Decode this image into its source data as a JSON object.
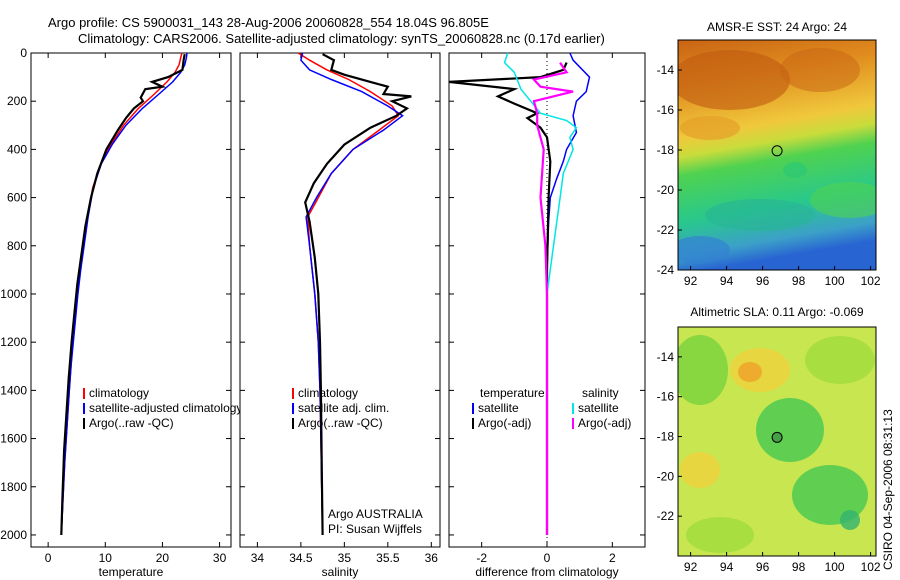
{
  "header": {
    "line1": "Argo profile: CS 5900031_143 28-Aug-2006 20060828_554 18.04S 96.805E",
    "line2": "Climatology: CARS2006. Satellite-adjusted climatology: synTS_20060828.nc (0.17d earlier)"
  },
  "colors": {
    "climatology": "#ff0000",
    "satellite": "#0000ff",
    "argo": "#000000",
    "salinity_sat": "#00e5e5",
    "salinity_argo": "#ff00ff"
  },
  "footer": {
    "stamp": "CSIRO 04-Sep-2006 08:31:13"
  },
  "chart_data": [
    {
      "type": "line",
      "id": "temperature",
      "xlabel": "temperature",
      "ylabel": "",
      "xlim": [
        -3,
        32
      ],
      "ylim": [
        2050,
        0
      ],
      "xticks": [
        0,
        10,
        20,
        30
      ],
      "yticks": [
        0,
        200,
        400,
        600,
        800,
        1000,
        1200,
        1400,
        1600,
        1800,
        2000
      ],
      "legend": [
        "climatology",
        "satellite-adjusted climatology",
        "Argo(..raw -QC)"
      ],
      "series": [
        {
          "name": "climatology",
          "color": "#ff0000",
          "x": [
            23.4,
            23.2,
            22.9,
            22.2,
            20.8,
            18.6,
            15.8,
            13.2,
            11.0,
            9.2,
            7.8,
            6.9,
            6.2,
            5.6,
            5.1,
            4.7,
            4.3,
            4.0,
            3.7,
            3.3,
            2.9,
            2.6,
            2.3
          ],
          "y": [
            0,
            20,
            50,
            80,
            120,
            170,
            230,
            300,
            380,
            460,
            560,
            680,
            800,
            900,
            1000,
            1100,
            1200,
            1300,
            1400,
            1550,
            1700,
            1850,
            2000
          ]
        },
        {
          "name": "satellite",
          "color": "#0000ff",
          "x": [
            24.3,
            24.2,
            23.9,
            23.2,
            21.8,
            19.4,
            16.5,
            13.6,
            11.2,
            9.3,
            7.9,
            7.0,
            6.3,
            5.7,
            5.2,
            4.8,
            4.4,
            4.0,
            3.7,
            3.3,
            2.9,
            2.6,
            2.3
          ],
          "y": [
            0,
            20,
            50,
            80,
            120,
            170,
            230,
            300,
            380,
            460,
            560,
            680,
            800,
            900,
            1000,
            1100,
            1200,
            1300,
            1400,
            1550,
            1700,
            1850,
            2000
          ]
        },
        {
          "name": "Argo",
          "color": "#000000",
          "x": [
            23.9,
            23.7,
            23.5,
            21.0,
            18.2,
            20.0,
            17.0,
            16.2,
            16.6,
            15.0,
            13.6,
            12.2,
            10.2,
            8.6,
            7.5,
            6.5,
            5.8,
            5.1,
            4.6,
            4.1,
            3.6,
            3.2,
            2.8,
            2.5,
            2.3
          ],
          "y": [
            5,
            30,
            70,
            100,
            120,
            140,
            150,
            185,
            200,
            230,
            270,
            320,
            400,
            500,
            600,
            720,
            840,
            960,
            1080,
            1200,
            1350,
            1500,
            1650,
            1850,
            2000
          ]
        }
      ]
    },
    {
      "type": "line",
      "id": "salinity",
      "xlabel": "salinity",
      "ylabel": "",
      "xlim": [
        33.8,
        36.1
      ],
      "ylim": [
        2050,
        0
      ],
      "xticks": [
        34,
        34.5,
        35,
        35.5,
        36
      ],
      "xticklabels": [
        "34",
        "34.5",
        "35",
        "35.5",
        "36"
      ],
      "legend": [
        "climatology",
        "satellite adj. clim.",
        "Argo(..raw -QC)"
      ],
      "annotations": [
        "Argo AUSTRALIA",
        "PI: Susan Wijffels"
      ],
      "series": [
        {
          "name": "climatology",
          "color": "#ff0000",
          "x": [
            34.47,
            34.6,
            34.8,
            35.05,
            35.3,
            35.55,
            35.62,
            35.4,
            35.1,
            34.85,
            34.7,
            34.58,
            34.6,
            34.66,
            34.7,
            34.72,
            34.73,
            34.74,
            34.75
          ],
          "y": [
            0,
            30,
            70,
            110,
            160,
            220,
            260,
            320,
            400,
            500,
            600,
            680,
            800,
            1000,
            1200,
            1400,
            1600,
            1800,
            2000
          ]
        },
        {
          "name": "satellite",
          "color": "#0000ff",
          "x": [
            34.52,
            34.5,
            34.6,
            34.85,
            35.2,
            35.5,
            35.67,
            35.45,
            35.1,
            34.85,
            34.68,
            34.56,
            34.6,
            34.66,
            34.7,
            34.72,
            34.73,
            34.74,
            34.75
          ],
          "y": [
            0,
            30,
            70,
            110,
            160,
            220,
            260,
            320,
            400,
            500,
            600,
            680,
            800,
            1000,
            1200,
            1400,
            1600,
            1800,
            2000
          ]
        },
        {
          "name": "Argo",
          "color": "#000000",
          "x": [
            34.75,
            34.88,
            34.85,
            35.0,
            35.3,
            35.5,
            35.45,
            35.77,
            35.55,
            35.72,
            35.6,
            35.3,
            35.0,
            34.8,
            34.65,
            34.55,
            34.6,
            34.66,
            34.7,
            34.72,
            34.73,
            34.74,
            34.75
          ],
          "y": [
            5,
            30,
            70,
            90,
            120,
            140,
            170,
            180,
            200,
            230,
            260,
            310,
            380,
            460,
            540,
            620,
            700,
            850,
            1000,
            1200,
            1400,
            1700,
            2000
          ]
        }
      ]
    },
    {
      "type": "line",
      "id": "difference",
      "xlabel": "difference from climatology",
      "ylabel": "",
      "xlim": [
        -3.0,
        3.0
      ],
      "ylim": [
        2050,
        0
      ],
      "xticks": [
        -2,
        0,
        2
      ],
      "legend_temperature": [
        "temperature",
        "satellite",
        "Argo(-adj)"
      ],
      "legend_salinity": [
        "salinity",
        "satellite",
        "Argo(-adj)"
      ],
      "series": [
        {
          "name": "temperature satellite",
          "color": "#0000ff",
          "x": [
            0.7,
            0.8,
            1.3,
            1.2,
            0.9,
            0.8,
            0.9,
            0.6,
            0.5,
            0.3,
            0.1,
            0.05,
            0.0,
            0.0,
            0.0,
            0.0
          ],
          "y": [
            0,
            30,
            100,
            160,
            200,
            260,
            330,
            400,
            450,
            520,
            600,
            700,
            900,
            1200,
            1600,
            2000
          ]
        },
        {
          "name": "temperature Argo",
          "color": "#000000",
          "x": [
            0.6,
            0.5,
            -0.2,
            -3.0,
            -1.0,
            -1.5,
            -1.0,
            -0.3,
            -0.6,
            -0.2,
            0.0,
            0.1,
            0.05,
            0.0,
            0.0,
            0.0
          ],
          "y": [
            40,
            70,
            100,
            120,
            150,
            180,
            210,
            250,
            270,
            310,
            350,
            450,
            600,
            900,
            1400,
            2000
          ]
        },
        {
          "name": "salinity satellite",
          "color": "#00e5e5",
          "x": [
            -1.2,
            -1.3,
            -1.0,
            -0.8,
            -0.5,
            -0.2,
            0.6,
            0.9,
            0.7,
            0.8,
            0.5,
            0.4,
            0.3,
            0.2,
            0.0,
            0.0
          ],
          "y": [
            0,
            40,
            80,
            150,
            200,
            250,
            280,
            310,
            350,
            400,
            500,
            600,
            700,
            800,
            1000,
            2000
          ]
        },
        {
          "name": "salinity Argo",
          "color": "#ff00ff",
          "x": [
            0.4,
            0.5,
            0.6,
            -0.4,
            -0.2,
            0.8,
            -0.4,
            -0.3,
            -0.3,
            -0.1,
            -0.2,
            -0.05,
            0.0,
            0.0
          ],
          "y": [
            40,
            60,
            80,
            110,
            140,
            160,
            200,
            250,
            300,
            400,
            600,
            800,
            1000,
            2000
          ]
        }
      ]
    },
    {
      "type": "heatmap",
      "id": "sst",
      "title": "AMSR-E SST: 24  Argo: 24",
      "xlim": [
        91.3,
        102.3
      ],
      "ylim": [
        -24,
        -12.5
      ],
      "xticks": [
        92,
        94,
        96,
        98,
        100,
        102
      ],
      "yticks": [
        -24,
        -22,
        -20,
        -18,
        -16,
        -14
      ],
      "marker": {
        "lon": 96.805,
        "lat": -18.04
      }
    },
    {
      "type": "heatmap",
      "id": "sla",
      "title": "Altimetric SLA: 0.11  Argo: -0.069",
      "xlim": [
        91.3,
        102.3
      ],
      "ylim": [
        -24,
        -12.5
      ],
      "xticks": [
        92,
        94,
        96,
        98,
        100,
        102
      ],
      "yticks": [
        -22,
        -20,
        -18,
        -16,
        -14
      ],
      "marker": {
        "lon": 96.805,
        "lat": -18.04
      }
    }
  ]
}
